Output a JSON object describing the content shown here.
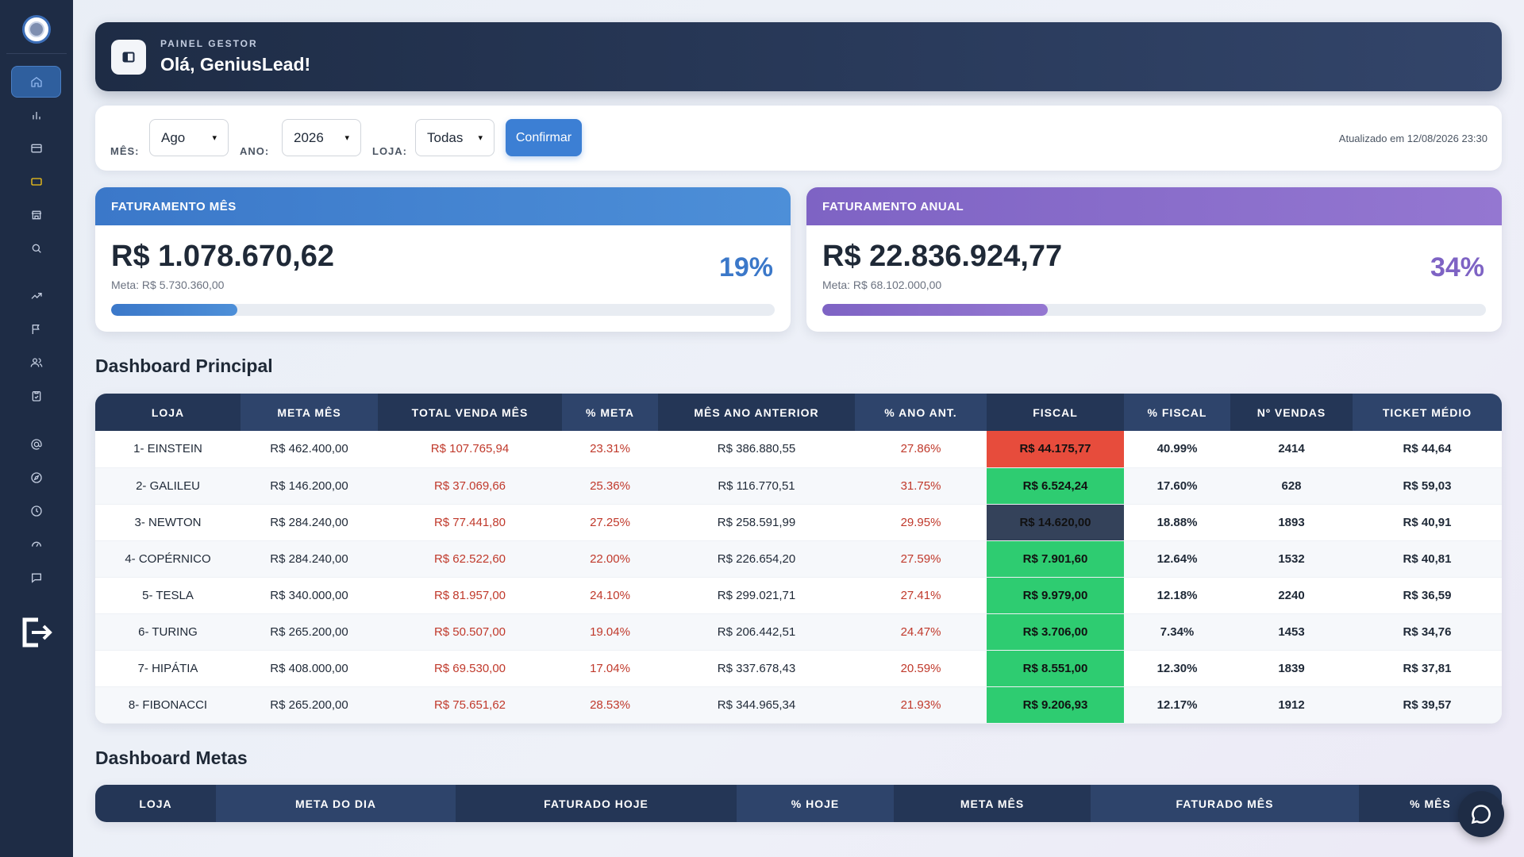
{
  "header": {
    "subtitle": "PAINEL GESTOR",
    "title": "Olá, GeniusLead!"
  },
  "filters": {
    "month_label": "MÊS:",
    "month_value": "Ago",
    "year_label": "ANO:",
    "year_value": "2026",
    "store_label": "LOJA:",
    "store_value": "Todas",
    "confirm_label": "Confirmar",
    "updated_text": "Atualizado em 12/08/2026 23:30"
  },
  "kpis": {
    "monthly": {
      "title": "FATURAMENTO MÊS",
      "value": "R$ 1.078.670,62",
      "meta": "Meta: R$ 5.730.360,00",
      "percent": "19%",
      "progress": 0.19,
      "color_start": "#3b78c9",
      "color_end": "#4d8fd8"
    },
    "annual": {
      "title": "FATURAMENTO ANUAL",
      "value": "R$ 22.836.924,77",
      "meta": "Meta: R$ 68.102.000,00",
      "percent": "34%",
      "progress": 0.34,
      "color_start": "#7e63c4",
      "color_end": "#9477d1"
    }
  },
  "dashboard_principal": {
    "title": "Dashboard Principal",
    "columns": [
      "LOJA",
      "META MÊS",
      "TOTAL VENDA MÊS",
      "% META",
      "MÊS ANO ANTERIOR",
      "% ANO ANT.",
      "FISCAL",
      "% FISCAL",
      "Nº VENDAS",
      "TICKET MÉDIO"
    ],
    "rows": [
      {
        "loja": "1- EINSTEIN",
        "meta_mes": "R$ 462.400,00",
        "total_venda": "R$ 107.765,94",
        "pct_meta": "23.31%",
        "mes_ano_ant": "R$ 386.880,55",
        "pct_ano_ant": "27.86%",
        "fiscal": "R$ 44.175,77",
        "fiscal_color": "#e74c3c",
        "pct_fiscal": "40.99%",
        "n_vendas": "2414",
        "ticket": "R$ 44,64"
      },
      {
        "loja": "2- GALILEU",
        "meta_mes": "R$ 146.200,00",
        "total_venda": "R$ 37.069,66",
        "pct_meta": "25.36%",
        "mes_ano_ant": "R$ 116.770,51",
        "pct_ano_ant": "31.75%",
        "fiscal": "R$ 6.524,24",
        "fiscal_color": "#2ecc71",
        "pct_fiscal": "17.60%",
        "n_vendas": "628",
        "ticket": "R$ 59,03"
      },
      {
        "loja": "3- NEWTON",
        "meta_mes": "R$ 284.240,00",
        "total_venda": "R$ 77.441,80",
        "pct_meta": "27.25%",
        "mes_ano_ant": "R$ 258.591,99",
        "pct_ano_ant": "29.95%",
        "fiscal": "R$ 14.620,00",
        "fiscal_color": "#34425a",
        "pct_fiscal": "18.88%",
        "n_vendas": "1893",
        "ticket": "R$ 40,91"
      },
      {
        "loja": "4- COPÉRNICO",
        "meta_mes": "R$ 284.240,00",
        "total_venda": "R$ 62.522,60",
        "pct_meta": "22.00%",
        "mes_ano_ant": "R$ 226.654,20",
        "pct_ano_ant": "27.59%",
        "fiscal": "R$ 7.901,60",
        "fiscal_color": "#2ecc71",
        "pct_fiscal": "12.64%",
        "n_vendas": "1532",
        "ticket": "R$ 40,81"
      },
      {
        "loja": "5- TESLA",
        "meta_mes": "R$ 340.000,00",
        "total_venda": "R$ 81.957,00",
        "pct_meta": "24.10%",
        "mes_ano_ant": "R$ 299.021,71",
        "pct_ano_ant": "27.41%",
        "fiscal": "R$ 9.979,00",
        "fiscal_color": "#2ecc71",
        "pct_fiscal": "12.18%",
        "n_vendas": "2240",
        "ticket": "R$ 36,59"
      },
      {
        "loja": "6- TURING",
        "meta_mes": "R$ 265.200,00",
        "total_venda": "R$ 50.507,00",
        "pct_meta": "19.04%",
        "mes_ano_ant": "R$ 206.442,51",
        "pct_ano_ant": "24.47%",
        "fiscal": "R$ 3.706,00",
        "fiscal_color": "#2ecc71",
        "pct_fiscal": "7.34%",
        "n_vendas": "1453",
        "ticket": "R$ 34,76"
      },
      {
        "loja": "7- HIPÁTIA",
        "meta_mes": "R$ 408.000,00",
        "total_venda": "R$ 69.530,00",
        "pct_meta": "17.04%",
        "mes_ano_ant": "R$ 337.678,43",
        "pct_ano_ant": "20.59%",
        "fiscal": "R$ 8.551,00",
        "fiscal_color": "#2ecc71",
        "pct_fiscal": "12.30%",
        "n_vendas": "1839",
        "ticket": "R$ 37,81"
      },
      {
        "loja": "8- FIBONACCI",
        "meta_mes": "R$ 265.200,00",
        "total_venda": "R$ 75.651,62",
        "pct_meta": "28.53%",
        "mes_ano_ant": "R$ 344.965,34",
        "pct_ano_ant": "21.93%",
        "fiscal": "R$ 9.206,93",
        "fiscal_color": "#2ecc71",
        "pct_fiscal": "12.17%",
        "n_vendas": "1912",
        "ticket": "R$ 39,57"
      }
    ]
  },
  "dashboard_metas": {
    "title": "Dashboard Metas",
    "columns": [
      "LOJA",
      "META DO DIA",
      "FATURADO HOJE",
      "% HOJE",
      "META MÊS",
      "FATURADO MÊS",
      "% MÊS"
    ]
  },
  "sidebar": {
    "items": [
      {
        "icon": "home-icon",
        "active": true
      },
      {
        "icon": "bar-chart-icon"
      },
      {
        "icon": "credit-card-icon"
      },
      {
        "icon": "wallet-icon",
        "color": "#f5c518"
      },
      {
        "icon": "store-icon"
      },
      {
        "icon": "search-icon"
      },
      {
        "icon": "trending-up-icon"
      },
      {
        "icon": "flag-icon"
      },
      {
        "icon": "users-icon"
      },
      {
        "icon": "clipboard-icon"
      },
      {
        "icon": "at-sign-icon"
      },
      {
        "icon": "compass-icon"
      },
      {
        "icon": "clock-icon"
      },
      {
        "icon": "gauge-icon"
      },
      {
        "icon": "message-icon"
      }
    ]
  }
}
